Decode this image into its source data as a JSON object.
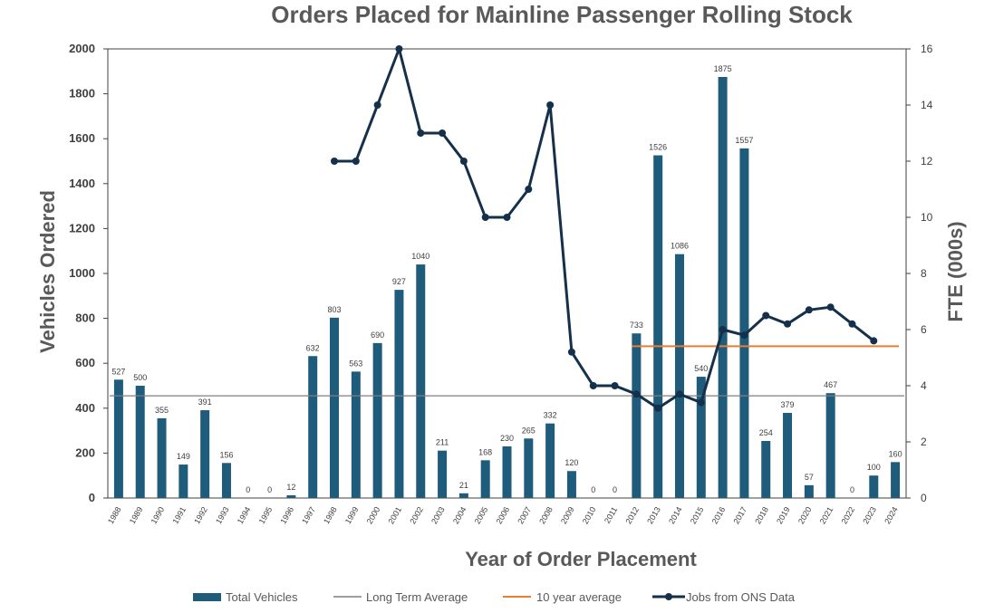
{
  "chart_data": {
    "type": "bar",
    "title": "Orders Placed for Mainline Passenger Rolling Stock",
    "xlabel": "Year of Order Placement",
    "ylabel": "Vehicles Ordered",
    "y2label": "FTE (000s)",
    "ylim": [
      0,
      2000
    ],
    "y2lim": [
      0,
      16
    ],
    "yticks": [
      0,
      200,
      400,
      600,
      800,
      1000,
      1200,
      1400,
      1600,
      1800,
      2000
    ],
    "y2ticks": [
      0,
      2,
      4,
      6,
      8,
      10,
      12,
      14,
      16
    ],
    "categories": [
      "1988",
      "1989",
      "1990",
      "1991",
      "1992",
      "1993",
      "1994",
      "1995",
      "1996",
      "1997",
      "1998",
      "1999",
      "2000",
      "2001",
      "2002",
      "2003",
      "2004",
      "2005",
      "2006",
      "2007",
      "2008",
      "2009",
      "2010",
      "2011",
      "2012",
      "2013",
      "2014",
      "2015",
      "2016",
      "2017",
      "2018",
      "2019",
      "2020",
      "2021",
      "2022",
      "2023",
      "2024"
    ],
    "series": [
      {
        "name": "Total Vehicles",
        "type": "bar",
        "axis": "left",
        "color": "#1f5b7a",
        "values": [
          527,
          500,
          355,
          149,
          391,
          156,
          0,
          0,
          12,
          632,
          803,
          563,
          690,
          927,
          1040,
          211,
          21,
          168,
          230,
          265,
          332,
          120,
          0,
          0,
          733,
          1526,
          1086,
          540,
          1875,
          1557,
          254,
          379,
          57,
          467,
          0,
          100,
          160
        ],
        "labels": [
          "527",
          "500",
          "355",
          "149",
          "391",
          "156",
          "0",
          "0",
          "12",
          "632",
          "803",
          "563",
          "690",
          "927",
          "1040",
          "211",
          "21",
          "168",
          "230",
          "265",
          "332",
          "120",
          "0",
          "0",
          "733",
          "1526",
          "1086",
          "540",
          "1875",
          "1557",
          "254",
          "379",
          "57",
          "467",
          "0",
          "100",
          "160"
        ]
      },
      {
        "name": "Long Term Average",
        "type": "hline",
        "axis": "left",
        "color": "#7f7f7f",
        "value": 455,
        "from": "1988",
        "to": "2024"
      },
      {
        "name": "10 year average",
        "type": "hline",
        "axis": "left",
        "color": "#ed7d31",
        "value": 676,
        "from": "2012",
        "to": "2024"
      },
      {
        "name": "Jobs from ONS Data",
        "type": "line",
        "axis": "right",
        "color": "#15304a",
        "x": [
          "1998",
          "1999",
          "2000",
          "2001",
          "2002",
          "2003",
          "2004",
          "2005",
          "2006",
          "2007",
          "2008",
          "2009",
          "2010",
          "2011",
          "2012",
          "2013",
          "2014",
          "2015",
          "2016",
          "2017",
          "2018",
          "2019",
          "2020",
          "2021",
          "2022",
          "2023"
        ],
        "values": [
          12,
          12,
          14,
          16,
          13,
          13,
          12,
          10,
          10,
          11,
          14,
          5.2,
          4,
          4,
          3.7,
          3.2,
          3.7,
          3.4,
          6,
          5.8,
          6.5,
          6.2,
          6.7,
          6.8,
          6.2,
          5.6
        ]
      }
    ],
    "legend": {
      "position": "bottom",
      "items": [
        "Total Vehicles",
        "Long Term Average",
        "10 year average",
        "Jobs from ONS Data"
      ]
    }
  }
}
